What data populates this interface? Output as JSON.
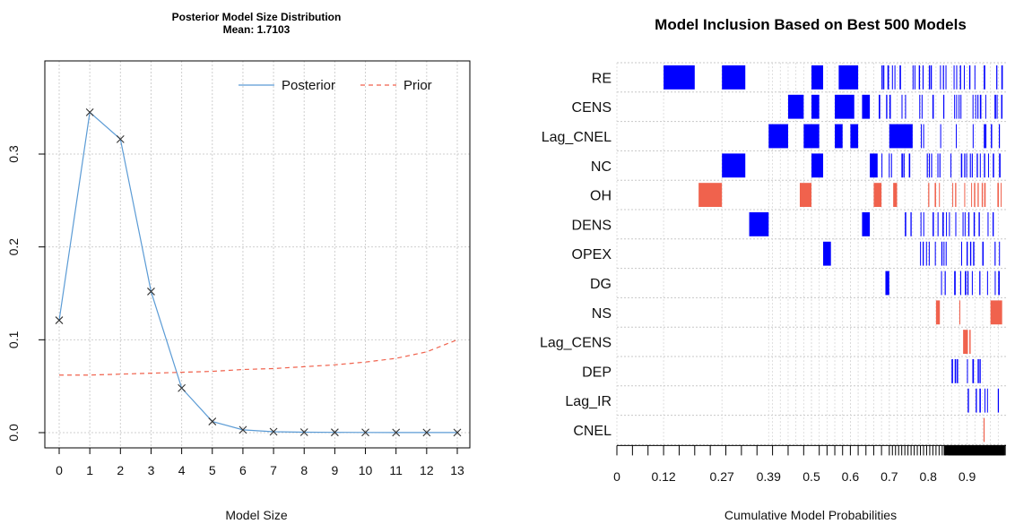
{
  "chart_data": [
    {
      "type": "line",
      "title": "Posterior Model Size Distribution",
      "subtitle": "Mean: 1.7103",
      "xlabel": "Model Size",
      "ylabel": "",
      "x": [
        0,
        1,
        2,
        3,
        4,
        5,
        6,
        7,
        8,
        9,
        10,
        11,
        12,
        13
      ],
      "xlim": [
        0,
        13
      ],
      "ylim": [
        0,
        0.36
      ],
      "yticks": [
        "0.0",
        "0.1",
        "0.2",
        "0.3"
      ],
      "grid": true,
      "legend_position": "top-right",
      "series": [
        {
          "name": "Posterior",
          "color": "#5b9bd5",
          "style": "solid",
          "marker": "x",
          "values": [
            0.121,
            0.345,
            0.316,
            0.152,
            0.048,
            0.012,
            0.003,
            0.001,
            0.0005,
            0.0003,
            0.0002,
            0.0001,
            0.0001,
            0.0001
          ]
        },
        {
          "name": "Prior",
          "color": "#f0624d",
          "style": "dashed",
          "values": [
            0.062,
            0.062,
            0.063,
            0.064,
            0.065,
            0.066,
            0.068,
            0.069,
            0.071,
            0.073,
            0.076,
            0.08,
            0.087,
            0.1
          ]
        }
      ]
    },
    {
      "type": "heatmap",
      "title": "Model Inclusion Based on Best  500  Models",
      "xlabel": "Cumulative Model Probabilities",
      "xticks": [
        0,
        0.12,
        0.27,
        0.39,
        0.5,
        0.6,
        0.7,
        0.8,
        0.9
      ],
      "xlim": [
        0,
        1
      ],
      "variables": [
        "RE",
        "CENS",
        "Lag_CNEL",
        "NC",
        "OH",
        "DENS",
        "OPEX",
        "DG",
        "NS",
        "Lag_CENS",
        "DEP",
        "Lag_IR",
        "CNEL"
      ],
      "colors": {
        "positive": "#0000ff",
        "negative": "#f0624d"
      },
      "model_count": 500,
      "cells": [
        {
          "var": "RE",
          "x0": 0.12,
          "x1": 0.2,
          "sign": "positive"
        },
        {
          "var": "RE",
          "x0": 0.27,
          "x1": 0.33,
          "sign": "positive"
        },
        {
          "var": "RE",
          "x0": 0.5,
          "x1": 0.53,
          "sign": "positive"
        },
        {
          "var": "RE",
          "x0": 0.57,
          "x1": 0.62,
          "sign": "positive"
        },
        {
          "var": "CENS",
          "x0": 0.44,
          "x1": 0.48,
          "sign": "positive"
        },
        {
          "var": "CENS",
          "x0": 0.5,
          "x1": 0.52,
          "sign": "positive"
        },
        {
          "var": "CENS",
          "x0": 0.56,
          "x1": 0.61,
          "sign": "positive"
        },
        {
          "var": "CENS",
          "x0": 0.63,
          "x1": 0.65,
          "sign": "positive"
        },
        {
          "var": "Lag_CNEL",
          "x0": 0.39,
          "x1": 0.44,
          "sign": "positive"
        },
        {
          "var": "Lag_CNEL",
          "x0": 0.48,
          "x1": 0.52,
          "sign": "positive"
        },
        {
          "var": "Lag_CNEL",
          "x0": 0.56,
          "x1": 0.58,
          "sign": "positive"
        },
        {
          "var": "Lag_CNEL",
          "x0": 0.6,
          "x1": 0.62,
          "sign": "positive"
        },
        {
          "var": "Lag_CNEL",
          "x0": 0.7,
          "x1": 0.76,
          "sign": "positive"
        },
        {
          "var": "NC",
          "x0": 0.27,
          "x1": 0.33,
          "sign": "positive"
        },
        {
          "var": "NC",
          "x0": 0.5,
          "x1": 0.53,
          "sign": "positive"
        },
        {
          "var": "NC",
          "x0": 0.65,
          "x1": 0.67,
          "sign": "positive"
        },
        {
          "var": "OH",
          "x0": 0.21,
          "x1": 0.27,
          "sign": "negative"
        },
        {
          "var": "OH",
          "x0": 0.47,
          "x1": 0.5,
          "sign": "negative"
        },
        {
          "var": "OH",
          "x0": 0.66,
          "x1": 0.68,
          "sign": "negative"
        },
        {
          "var": "OH",
          "x0": 0.71,
          "x1": 0.72,
          "sign": "negative"
        },
        {
          "var": "DENS",
          "x0": 0.34,
          "x1": 0.39,
          "sign": "positive"
        },
        {
          "var": "DENS",
          "x0": 0.63,
          "x1": 0.65,
          "sign": "positive"
        },
        {
          "var": "OPEX",
          "x0": 0.53,
          "x1": 0.55,
          "sign": "positive"
        },
        {
          "var": "DG",
          "x0": 0.69,
          "x1": 0.7,
          "sign": "positive"
        },
        {
          "var": "NS",
          "x0": 0.82,
          "x1": 0.83,
          "sign": "negative"
        },
        {
          "var": "NS",
          "x0": 0.96,
          "x1": 0.99,
          "sign": "negative"
        },
        {
          "var": "Lag_CENS",
          "x0": 0.89,
          "x1": 0.9,
          "sign": "negative"
        }
      ],
      "strip_ranges": [
        {
          "var": "RE",
          "from": 0.68,
          "to": 0.99,
          "sign": "positive"
        },
        {
          "var": "CENS",
          "from": 0.66,
          "to": 0.99,
          "sign": "positive"
        },
        {
          "var": "Lag_CNEL",
          "from": 0.77,
          "to": 0.99,
          "sign": "positive"
        },
        {
          "var": "NC",
          "from": 0.68,
          "to": 0.99,
          "sign": "positive"
        },
        {
          "var": "OH",
          "from": 0.8,
          "to": 0.99,
          "sign": "negative"
        },
        {
          "var": "DENS",
          "from": 0.74,
          "to": 0.99,
          "sign": "positive"
        },
        {
          "var": "OPEX",
          "from": 0.77,
          "to": 0.99,
          "sign": "positive"
        },
        {
          "var": "DG",
          "from": 0.78,
          "to": 0.99,
          "sign": "positive"
        },
        {
          "var": "NS",
          "from": 0.88,
          "to": 0.91,
          "sign": "negative"
        },
        {
          "var": "Lag_CENS",
          "from": 0.89,
          "to": 0.91,
          "sign": "negative"
        },
        {
          "var": "DEP",
          "from": 0.86,
          "to": 0.94,
          "sign": "positive"
        },
        {
          "var": "Lag_IR",
          "from": 0.88,
          "to": 0.99,
          "sign": "positive"
        },
        {
          "var": "CNEL",
          "from": 0.93,
          "to": 0.95,
          "sign": "negative"
        }
      ]
    }
  ]
}
